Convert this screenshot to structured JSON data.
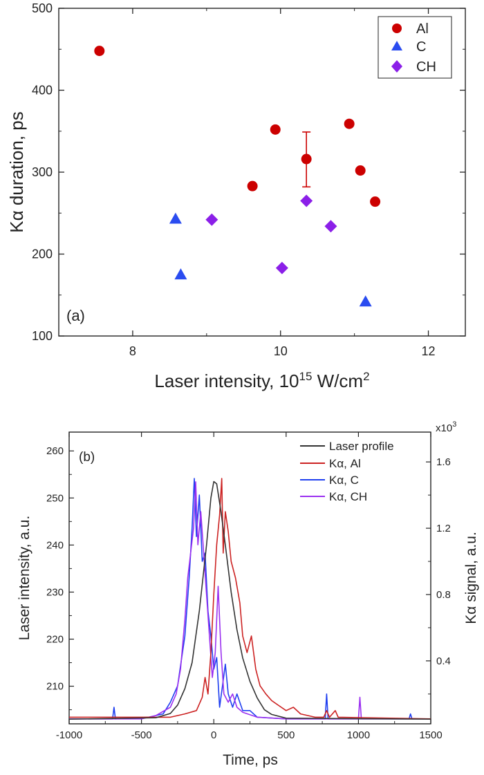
{
  "chart_data": [
    {
      "type": "scatter",
      "panel_label": "(a)",
      "xlabel_main": "Laser intensity, 10",
      "xlabel_sup": "15",
      "xlabel_unit": " W/cm",
      "xlabel_unit_sup": "2",
      "ylabel": "Kα duration, ps",
      "xlim": [
        7.0,
        12.5
      ],
      "ylim": [
        100,
        500
      ],
      "xticks": [
        8,
        10,
        12
      ],
      "yticks": [
        100,
        200,
        300,
        400,
        500
      ],
      "legend_position": "top-right",
      "series": [
        {
          "name": "Al",
          "marker": "circle",
          "color": "#cc0000",
          "points": [
            [
              7.55,
              448
            ],
            [
              9.62,
              283
            ],
            [
              9.93,
              352
            ],
            [
              10.35,
              316
            ],
            [
              10.93,
              359
            ],
            [
              11.08,
              302
            ],
            [
              11.28,
              264
            ]
          ],
          "error_bars": [
            {
              "x": 10.35,
              "y": 316,
              "low": 282,
              "high": 349
            }
          ]
        },
        {
          "name": "C",
          "marker": "triangle",
          "color": "#2a4cf0",
          "points": [
            [
              8.58,
              243
            ],
            [
              8.65,
              175
            ],
            [
              11.15,
              142
            ]
          ]
        },
        {
          "name": "CH",
          "marker": "diamond",
          "color": "#8b1fe8",
          "points": [
            [
              9.07,
              242
            ],
            [
              10.02,
              183
            ],
            [
              10.35,
              265
            ],
            [
              10.68,
              234
            ]
          ]
        }
      ]
    },
    {
      "type": "line",
      "panel_label": "(b)",
      "xlabel": "Time, ps",
      "ylabel_left": "Laser intensity, a.u.",
      "ylabel_right": "Kα signal, a.u.",
      "right_multiplier": "x10",
      "right_multiplier_sup": "3",
      "xlim": [
        -1000,
        1500
      ],
      "ylim_left": [
        202,
        264
      ],
      "ylim_right": [
        0.02,
        1.78
      ],
      "xticks": [
        -1000,
        -500,
        0,
        500,
        1000,
        1500
      ],
      "yticks_left": [
        210,
        220,
        230,
        240,
        250,
        260
      ],
      "yticks_right": [
        0.4,
        0.8,
        1.2,
        1.6
      ],
      "legend_position": "top-right",
      "series": [
        {
          "name": "Laser profile",
          "color": "#333333",
          "axis": "left",
          "points": [
            [
              -1000,
              203
            ],
            [
              -400,
              203.3
            ],
            [
              -300,
              204.2
            ],
            [
              -250,
              206
            ],
            [
              -200,
              209.5
            ],
            [
              -150,
              215
            ],
            [
              -100,
              226
            ],
            [
              -50,
              240
            ],
            [
              -20,
              250
            ],
            [
              0,
              253.5
            ],
            [
              20,
              253
            ],
            [
              50,
              247
            ],
            [
              80,
              240
            ],
            [
              120,
              230
            ],
            [
              160,
              222
            ],
            [
              200,
              216
            ],
            [
              250,
              211
            ],
            [
              300,
              207.5
            ],
            [
              350,
              205
            ],
            [
              400,
              204
            ],
            [
              500,
              203.2
            ],
            [
              1500,
              203
            ]
          ]
        },
        {
          "name": "Kα, Al",
          "color": "#cc2222",
          "axis": "right",
          "points": [
            [
              -1000,
              0.06
            ],
            [
              -300,
              0.06
            ],
            [
              -200,
              0.08
            ],
            [
              -120,
              0.1
            ],
            [
              -80,
              0.18
            ],
            [
              -60,
              0.3
            ],
            [
              -40,
              0.2
            ],
            [
              -20,
              0.45
            ],
            [
              0,
              0.8
            ],
            [
              20,
              1.1
            ],
            [
              40,
              1.28
            ],
            [
              55,
              1.5
            ],
            [
              65,
              1.05
            ],
            [
              80,
              1.3
            ],
            [
              100,
              1.18
            ],
            [
              120,
              1.0
            ],
            [
              150,
              0.9
            ],
            [
              180,
              0.75
            ],
            [
              200,
              0.55
            ],
            [
              230,
              0.45
            ],
            [
              260,
              0.55
            ],
            [
              290,
              0.35
            ],
            [
              320,
              0.25
            ],
            [
              360,
              0.2
            ],
            [
              400,
              0.16
            ],
            [
              450,
              0.13
            ],
            [
              500,
              0.1
            ],
            [
              550,
              0.12
            ],
            [
              600,
              0.08
            ],
            [
              700,
              0.06
            ],
            [
              760,
              0.06
            ],
            [
              780,
              0.1
            ],
            [
              800,
              0.06
            ],
            [
              840,
              0.1
            ],
            [
              860,
              0.06
            ],
            [
              1500,
              0.05
            ]
          ]
        },
        {
          "name": "Kα, C",
          "color": "#1f3ff0",
          "axis": "right",
          "points": [
            [
              -1000,
              0.05
            ],
            [
              -700,
              0.05
            ],
            [
              -690,
              0.12
            ],
            [
              -680,
              0.05
            ],
            [
              -450,
              0.06
            ],
            [
              -350,
              0.08
            ],
            [
              -300,
              0.15
            ],
            [
              -250,
              0.25
            ],
            [
              -200,
              0.55
            ],
            [
              -170,
              0.9
            ],
            [
              -150,
              1.2
            ],
            [
              -135,
              1.5
            ],
            [
              -120,
              1.15
            ],
            [
              -100,
              1.4
            ],
            [
              -80,
              1.0
            ],
            [
              -60,
              1.05
            ],
            [
              -40,
              0.7
            ],
            [
              -20,
              0.55
            ],
            [
              0,
              0.35
            ],
            [
              20,
              0.42
            ],
            [
              40,
              0.12
            ],
            [
              60,
              0.25
            ],
            [
              80,
              0.38
            ],
            [
              100,
              0.2
            ],
            [
              130,
              0.12
            ],
            [
              160,
              0.2
            ],
            [
              200,
              0.1
            ],
            [
              250,
              0.1
            ],
            [
              300,
              0.06
            ],
            [
              500,
              0.05
            ],
            [
              770,
              0.05
            ],
            [
              780,
              0.2
            ],
            [
              790,
              0.05
            ],
            [
              1350,
              0.05
            ],
            [
              1360,
              0.08
            ],
            [
              1370,
              0.05
            ],
            [
              1500,
              0.05
            ]
          ]
        },
        {
          "name": "Kα, CH",
          "color": "#9b30f0",
          "axis": "right",
          "points": [
            [
              -1000,
              0.05
            ],
            [
              -500,
              0.05
            ],
            [
              -400,
              0.07
            ],
            [
              -300,
              0.12
            ],
            [
              -260,
              0.2
            ],
            [
              -230,
              0.35
            ],
            [
              -200,
              0.65
            ],
            [
              -180,
              0.9
            ],
            [
              -160,
              1.05
            ],
            [
              -140,
              1.2
            ],
            [
              -125,
              1.48
            ],
            [
              -110,
              1.1
            ],
            [
              -90,
              1.3
            ],
            [
              -70,
              1.05
            ],
            [
              -50,
              0.8
            ],
            [
              -30,
              0.55
            ],
            [
              -10,
              0.3
            ],
            [
              10,
              0.45
            ],
            [
              30,
              0.85
            ],
            [
              50,
              0.45
            ],
            [
              70,
              0.2
            ],
            [
              100,
              0.15
            ],
            [
              130,
              0.2
            ],
            [
              160,
              0.12
            ],
            [
              200,
              0.09
            ],
            [
              300,
              0.06
            ],
            [
              500,
              0.05
            ],
            [
              1000,
              0.05
            ],
            [
              1010,
              0.18
            ],
            [
              1020,
              0.05
            ],
            [
              1500,
              0.05
            ]
          ]
        }
      ]
    }
  ]
}
